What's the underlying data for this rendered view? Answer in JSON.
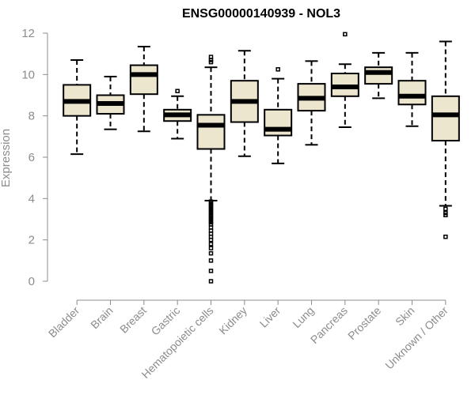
{
  "chart_data": {
    "type": "box",
    "title": "ENSG00000140939 - NOL3",
    "xlabel": "",
    "ylabel": "Expression",
    "ylim": [
      0,
      12
    ],
    "yticks": [
      0,
      2,
      4,
      6,
      8,
      10,
      12
    ],
    "colors": {
      "box_fill": "#ede6ce",
      "axis": "#8c8c8c",
      "stroke": "#000000"
    },
    "categories": [
      "Bladder",
      "Brain",
      "Breast",
      "Gastric",
      "Hematopoietic cells",
      "Kidney",
      "Liver",
      "Lung",
      "Pancreas",
      "Prostate",
      "Skin",
      "Unknown / Other"
    ],
    "boxes": [
      {
        "name": "Bladder",
        "whisker_low": 6.15,
        "q1": 8.0,
        "median": 8.7,
        "q3": 9.5,
        "whisker_high": 10.7,
        "outliers": []
      },
      {
        "name": "Brain",
        "whisker_low": 7.35,
        "q1": 8.1,
        "median": 8.6,
        "q3": 9.0,
        "whisker_high": 9.9,
        "outliers": []
      },
      {
        "name": "Breast",
        "whisker_low": 7.25,
        "q1": 9.05,
        "median": 10.0,
        "q3": 10.45,
        "whisker_high": 11.35,
        "outliers": []
      },
      {
        "name": "Gastric",
        "whisker_low": 6.9,
        "q1": 7.75,
        "median": 8.05,
        "q3": 8.3,
        "whisker_high": 8.95,
        "outliers": [
          9.2
        ]
      },
      {
        "name": "Hematopoietic cells",
        "whisker_low": 3.9,
        "q1": 6.4,
        "median": 7.55,
        "q3": 8.05,
        "whisker_high": 10.35,
        "outliers": [
          10.6,
          10.7,
          10.85,
          3.85,
          3.75,
          3.65,
          3.55,
          3.45,
          3.35,
          3.25,
          3.15,
          3.05,
          2.95,
          2.85,
          2.75,
          2.6,
          2.45,
          2.3,
          2.15,
          2.0,
          1.8,
          1.6,
          1.35,
          1.0,
          0.5,
          0.0
        ]
      },
      {
        "name": "Kidney",
        "whisker_low": 6.05,
        "q1": 7.7,
        "median": 8.7,
        "q3": 9.7,
        "whisker_high": 11.15,
        "outliers": []
      },
      {
        "name": "Liver",
        "whisker_low": 5.7,
        "q1": 7.05,
        "median": 7.35,
        "q3": 8.3,
        "whisker_high": 9.8,
        "outliers": [
          10.25
        ]
      },
      {
        "name": "Lung",
        "whisker_low": 6.6,
        "q1": 8.25,
        "median": 8.85,
        "q3": 9.55,
        "whisker_high": 10.65,
        "outliers": []
      },
      {
        "name": "Pancreas",
        "whisker_low": 7.45,
        "q1": 8.95,
        "median": 9.4,
        "q3": 10.05,
        "whisker_high": 10.5,
        "outliers": [
          11.95
        ]
      },
      {
        "name": "Prostate",
        "whisker_low": 8.85,
        "q1": 9.55,
        "median": 10.1,
        "q3": 10.35,
        "whisker_high": 11.05,
        "outliers": []
      },
      {
        "name": "Skin",
        "whisker_low": 7.5,
        "q1": 8.55,
        "median": 8.95,
        "q3": 9.7,
        "whisker_high": 11.05,
        "outliers": []
      },
      {
        "name": "Unknown / Other",
        "whisker_low": 3.65,
        "q1": 6.8,
        "median": 8.05,
        "q3": 8.95,
        "whisker_high": 11.6,
        "outliers": [
          3.5,
          3.3,
          3.2,
          2.15
        ]
      }
    ]
  }
}
